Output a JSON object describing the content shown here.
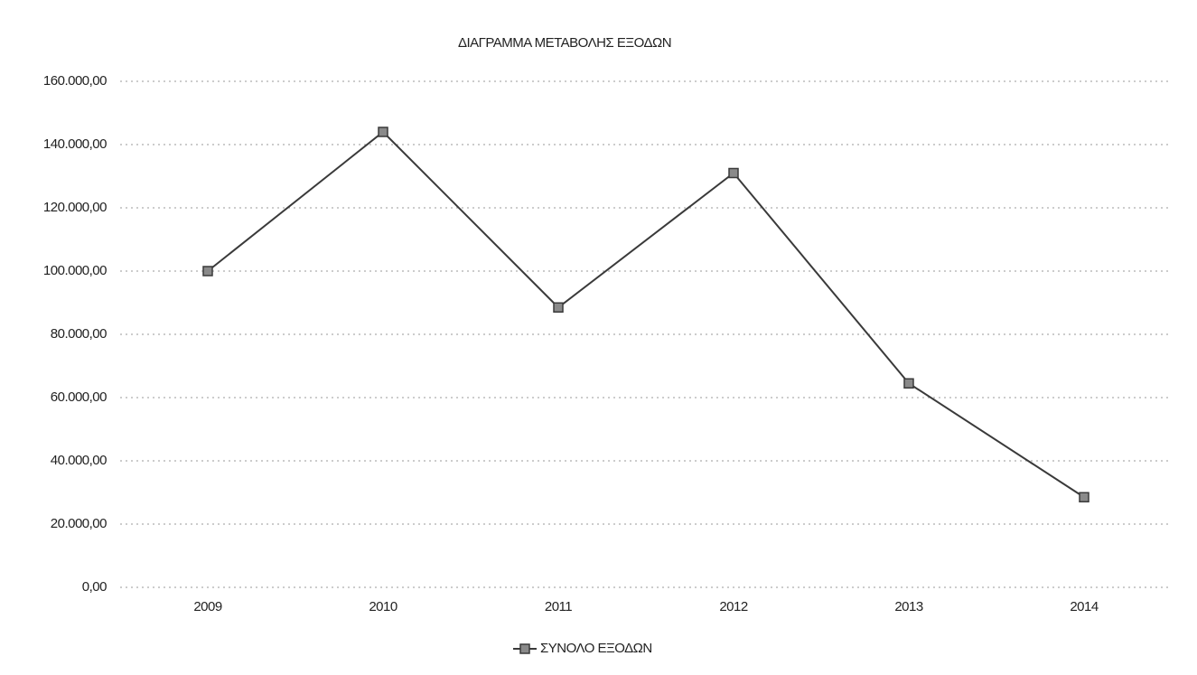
{
  "chart_data": {
    "type": "line",
    "title": "ΔΙΑΓΡΑΜΜΑ ΜΕΤΑΒΟΛΗΣ ΕΞΟΔΩΝ",
    "categories": [
      "2009",
      "2010",
      "2011",
      "2012",
      "2013",
      "2014"
    ],
    "series": [
      {
        "name": "ΣΥΝΟΛΟ ΕΞΟΔΩΝ",
        "color": "#3a3a3a",
        "values": [
          100000,
          144000,
          88500,
          131000,
          64500,
          28500
        ]
      }
    ],
    "ylim": [
      0,
      160000
    ],
    "yticks": [
      {
        "value": 0,
        "label": "0,00"
      },
      {
        "value": 20000,
        "label": "20.000,00"
      },
      {
        "value": 40000,
        "label": "40.000,00"
      },
      {
        "value": 60000,
        "label": "60.000,00"
      },
      {
        "value": 80000,
        "label": "80.000,00"
      },
      {
        "value": 100000,
        "label": "100.000,00"
      },
      {
        "value": 120000,
        "label": "120.000,00"
      },
      {
        "value": 140000,
        "label": "140.000,00"
      },
      {
        "value": 160000,
        "label": "160.000,00"
      }
    ],
    "grid": true,
    "legend": "bottom"
  }
}
